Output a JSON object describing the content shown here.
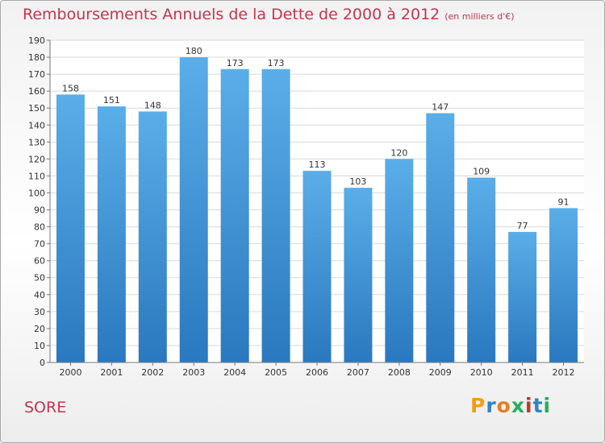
{
  "title": "Remboursements Annuels de la Dette de 2000 à 2012",
  "subtitle": "(en milliers d'€)",
  "commune": "SORE",
  "logo": {
    "letters": [
      "P",
      "r",
      "o",
      "x",
      "i",
      "t",
      "i"
    ],
    "colors": [
      "#f39c12",
      "#2e86c1",
      "#e67e22",
      "#27ae60",
      "#c0392b",
      "#2e86c1",
      "#27ae60"
    ]
  },
  "colors": {
    "bar_top": "#5aaee8",
    "bar_bottom": "#2a78bf",
    "title": "#c4354f"
  },
  "chart_data": {
    "type": "bar",
    "categories": [
      "2000",
      "2001",
      "2002",
      "2003",
      "2004",
      "2005",
      "2006",
      "2007",
      "2008",
      "2009",
      "2010",
      "2011",
      "2012"
    ],
    "values": [
      158,
      151,
      148,
      180,
      173,
      173,
      113,
      103,
      120,
      147,
      109,
      77,
      91
    ],
    "ylim": [
      0,
      190
    ],
    "yticks": [
      0,
      10,
      20,
      30,
      40,
      50,
      60,
      70,
      80,
      90,
      100,
      110,
      120,
      130,
      140,
      150,
      160,
      170,
      180,
      190
    ],
    "grid": true,
    "data_labels": true
  }
}
